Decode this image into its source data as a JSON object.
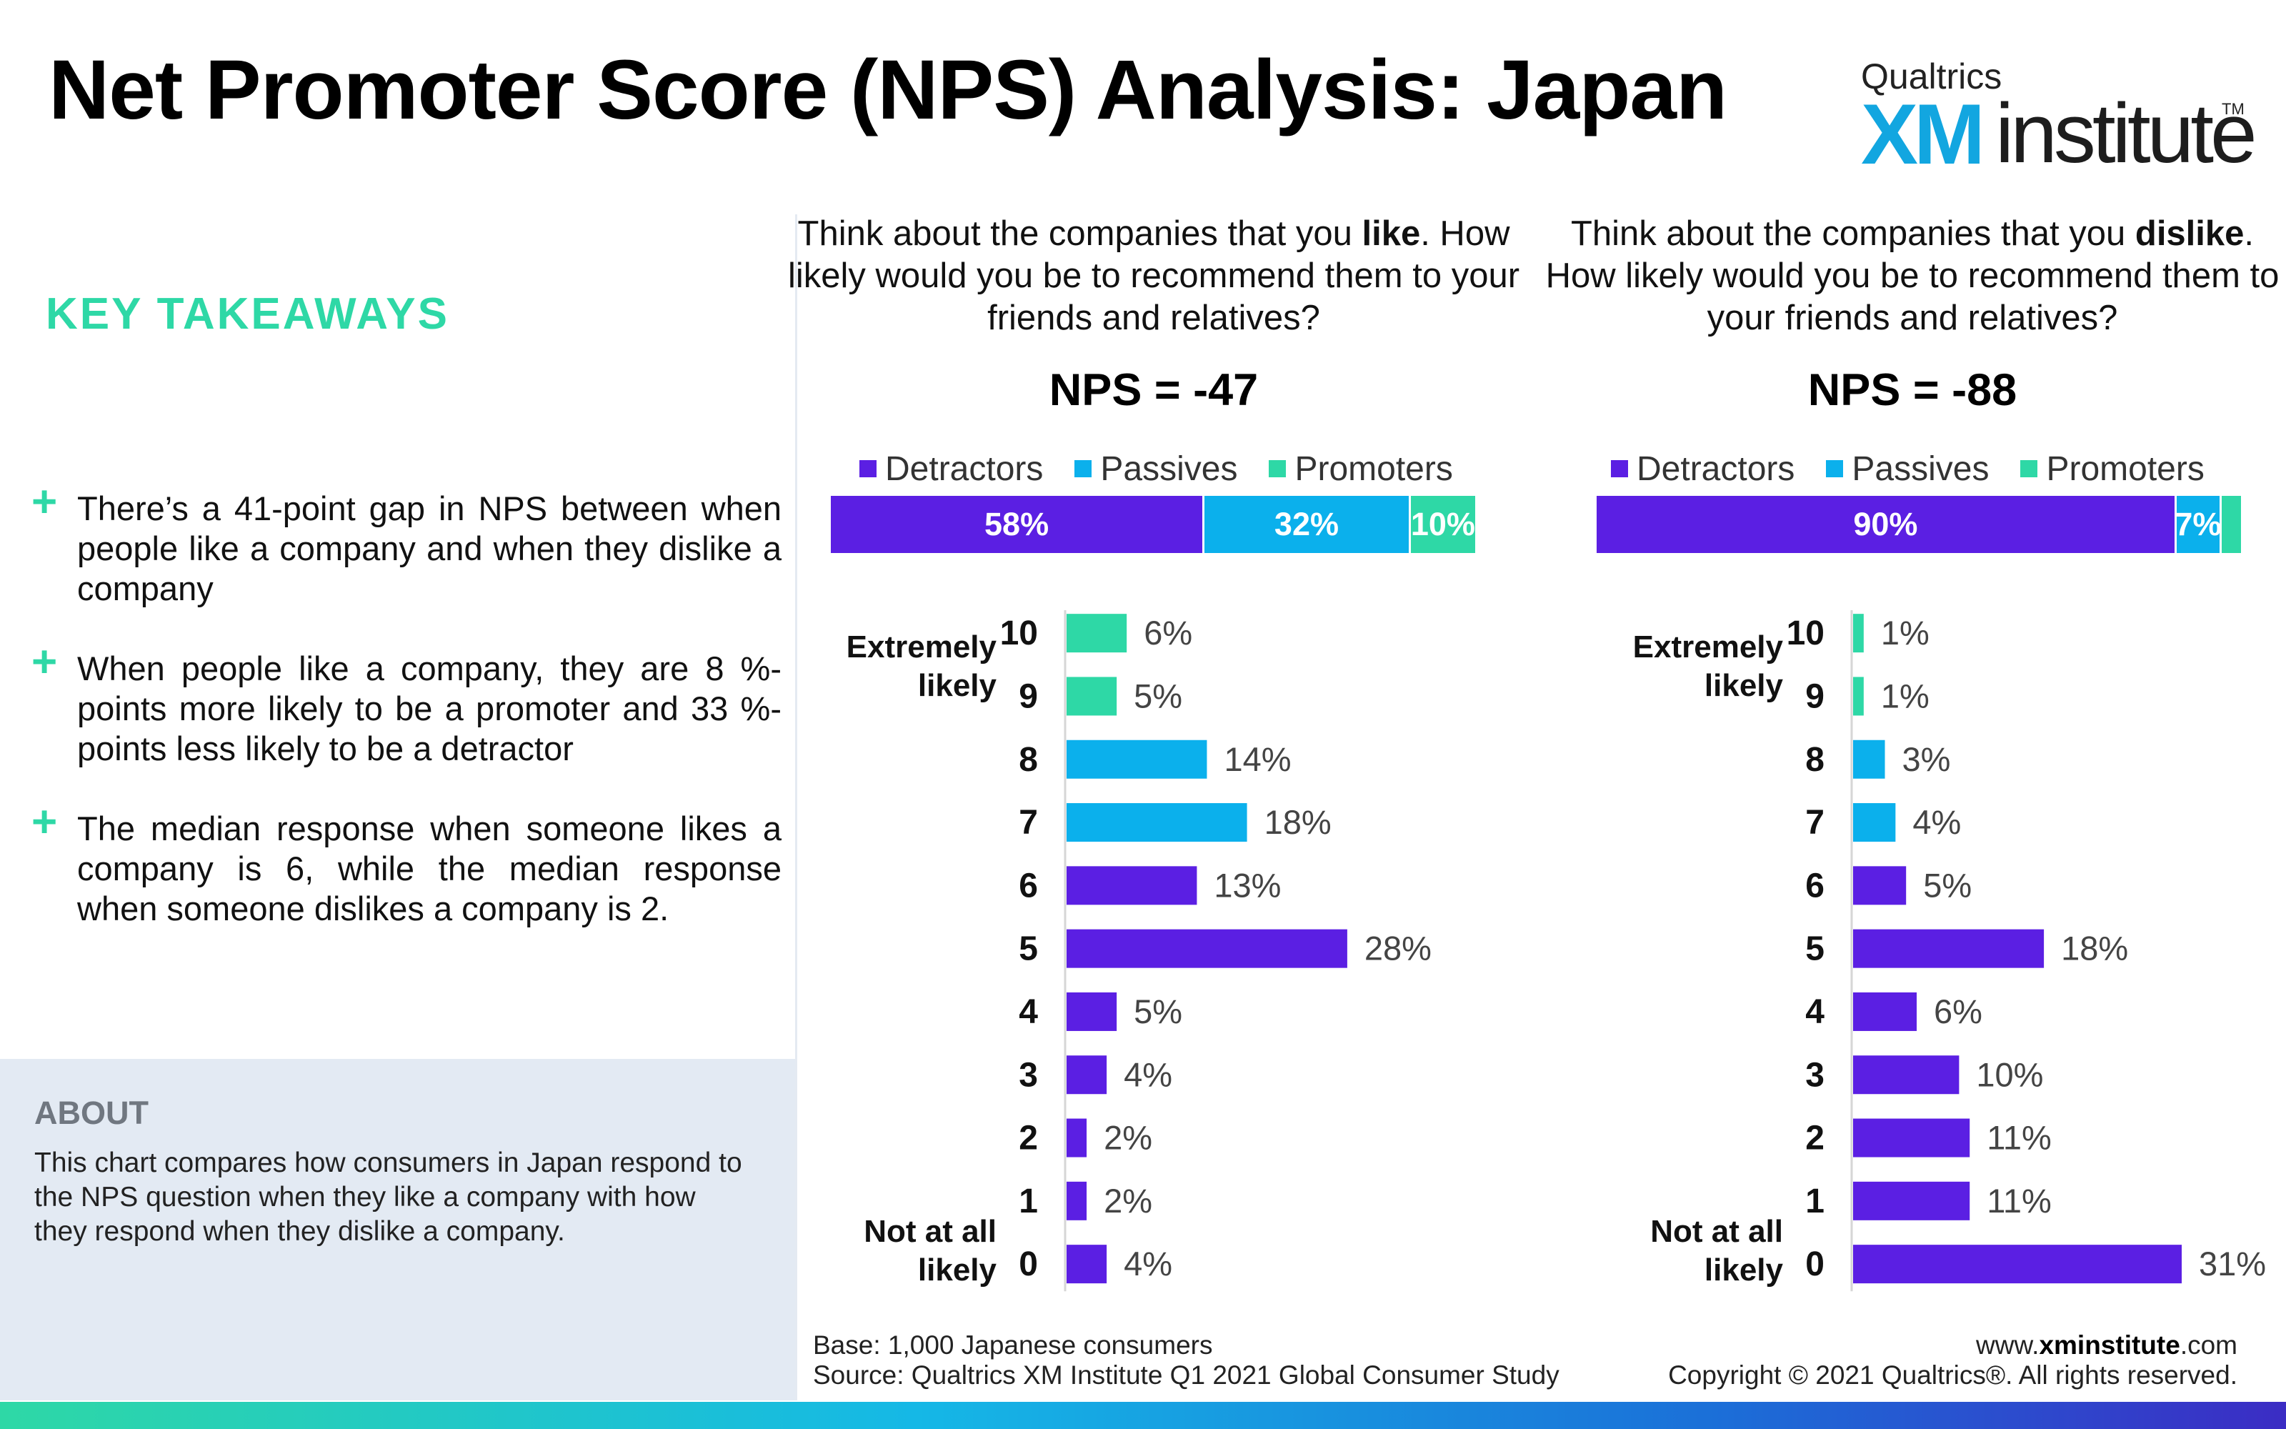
{
  "title": "Net Promoter Score (NPS) Analysis: Japan",
  "logo": {
    "brand": "Qualtrics",
    "xm": "XM",
    "institute": "institute",
    "tm": "TM"
  },
  "colors": {
    "detractor": "#5b1fe3",
    "passive": "#0bb0ec",
    "promoter": "#2ed8a6",
    "accent": "#2ed8a6"
  },
  "takeaways": {
    "heading": "KEY TAKEAWAYS",
    "items": [
      "There’s a 41-point gap in NPS between when people like a company and when they dislike a company",
      "When people like a company, they are 8 %-points more likely to be a promoter and 33 %-points less likely to be a detractor",
      "The median response when someone likes a company is 6, while the median response when someone dislikes a company is 2."
    ]
  },
  "about": {
    "heading": "ABOUT",
    "text": "This chart compares how consumers in Japan respond to the NPS question when they like a company with how they respond when they dislike a company."
  },
  "footer": {
    "base": "Base: 1,000 Japanese consumers",
    "source": "Source: Qualtrics XM Institute Q1 2021 Global Consumer Study",
    "url_prefix": "www.",
    "url_bold": "xminstitute",
    "url_suffix": ".com",
    "copyright": "Copyright © 2021 Qualtrics®. All rights reserved."
  },
  "chart_data": [
    {
      "type": "bar",
      "question_pre": "Think about the companies that you ",
      "question_bold": "like",
      "question_post": ". How likely would you be to recommend them to your friends and relatives?",
      "nps_label": "NPS = -47",
      "legend": [
        "Detractors",
        "Passives",
        "Promoters"
      ],
      "stacked": [
        {
          "name": "Detractors",
          "value": 58,
          "label": "58%"
        },
        {
          "name": "Passives",
          "value": 32,
          "label": "32%"
        },
        {
          "name": "Promoters",
          "value": 10,
          "label": "10%"
        }
      ],
      "top_label": "Extremely likely",
      "bottom_label": "Not at all likely",
      "categories": [
        "10",
        "9",
        "8",
        "7",
        "6",
        "5",
        "4",
        "3",
        "2",
        "1",
        "0"
      ],
      "values": [
        6,
        5,
        14,
        18,
        13,
        28,
        5,
        4,
        2,
        2,
        4
      ],
      "value_labels": [
        "6%",
        "5%",
        "14%",
        "18%",
        "13%",
        "28%",
        "5%",
        "4%",
        "2%",
        "2%",
        "4%"
      ],
      "groups": [
        "promoter",
        "promoter",
        "passive",
        "passive",
        "detractor",
        "detractor",
        "detractor",
        "detractor",
        "detractor",
        "detractor",
        "detractor"
      ],
      "xlim": [
        0,
        31
      ]
    },
    {
      "type": "bar",
      "question_pre": "Think about the companies that you ",
      "question_bold": "dislike",
      "question_post": ". How likely would you be to recommend them to your friends and relatives?",
      "nps_label": "NPS = -88",
      "legend": [
        "Detractors",
        "Passives",
        "Promoters"
      ],
      "stacked": [
        {
          "name": "Detractors",
          "value": 90,
          "label": "90%"
        },
        {
          "name": "Passives",
          "value": 7,
          "label": "7%"
        },
        {
          "name": "Promoters",
          "value": 3,
          "label": ""
        }
      ],
      "top_label": "Extremely likely",
      "bottom_label": "Not at all likely",
      "categories": [
        "10",
        "9",
        "8",
        "7",
        "6",
        "5",
        "4",
        "3",
        "2",
        "1",
        "0"
      ],
      "values": [
        1,
        1,
        3,
        4,
        5,
        18,
        6,
        10,
        11,
        11,
        31
      ],
      "value_labels": [
        "1%",
        "1%",
        "3%",
        "4%",
        "5%",
        "18%",
        "6%",
        "10%",
        "11%",
        "11%",
        "31%"
      ],
      "groups": [
        "promoter",
        "promoter",
        "passive",
        "passive",
        "detractor",
        "detractor",
        "detractor",
        "detractor",
        "detractor",
        "detractor",
        "detractor"
      ],
      "xlim": [
        0,
        31
      ]
    }
  ]
}
